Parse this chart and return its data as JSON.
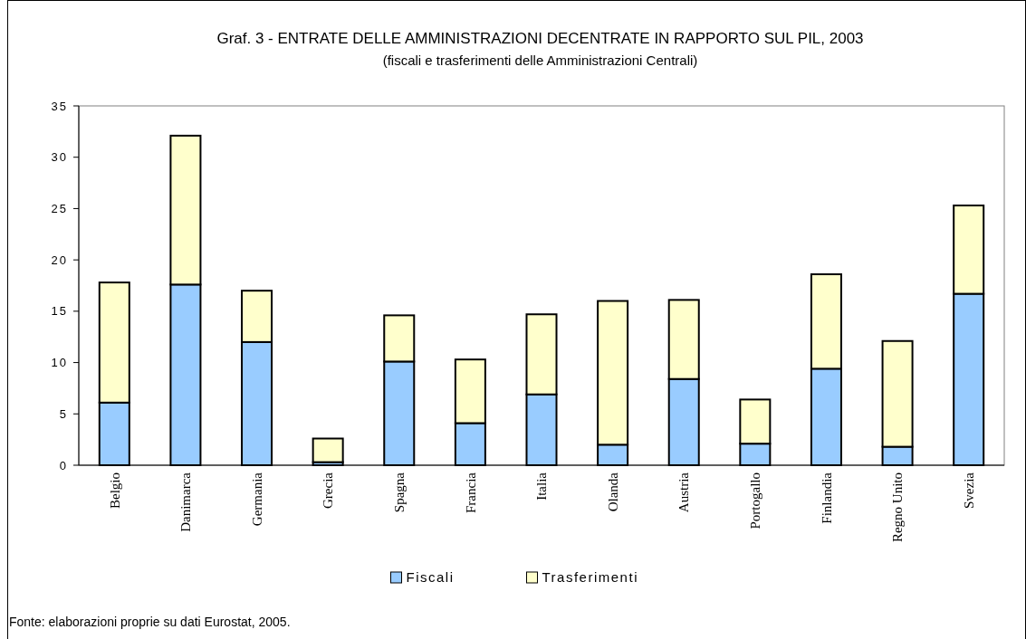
{
  "chart_data": {
    "type": "bar",
    "stacked": true,
    "title": "Graf. 3 - ENTRATE DELLE AMMINISTRAZIONI DECENTRATE IN RAPPORTO SUL PIL, 2003",
    "subtitle": "(fiscali e trasferimenti delle Amministrazioni Centrali)",
    "categories": [
      "Belgio",
      "Danimarca",
      "Germania",
      "Grecia",
      "Spagna",
      "Francia",
      "Italia",
      "Olanda",
      "Austria",
      "Portogallo",
      "Finlandia",
      "Regno Unito",
      "Svezia"
    ],
    "series": [
      {
        "name": "Fiscali",
        "color": "#99ccff",
        "values": [
          6.1,
          17.6,
          12.0,
          0.3,
          10.1,
          4.1,
          6.9,
          2.0,
          8.4,
          2.1,
          9.4,
          1.8,
          16.7
        ]
      },
      {
        "name": "Trasferimenti",
        "color": "#ffffcc",
        "values": [
          11.7,
          14.5,
          5.0,
          2.3,
          4.5,
          6.2,
          7.8,
          14.0,
          7.7,
          4.3,
          9.2,
          10.3,
          8.6
        ]
      }
    ],
    "ylim": [
      0,
      35
    ],
    "yticks": [
      0,
      5,
      10,
      15,
      20,
      25,
      30,
      35
    ],
    "grid": false,
    "legend": "bottom",
    "annotations": [
      "Fonte: elaborazioni proprie su dati Eurostat, 2005."
    ]
  }
}
